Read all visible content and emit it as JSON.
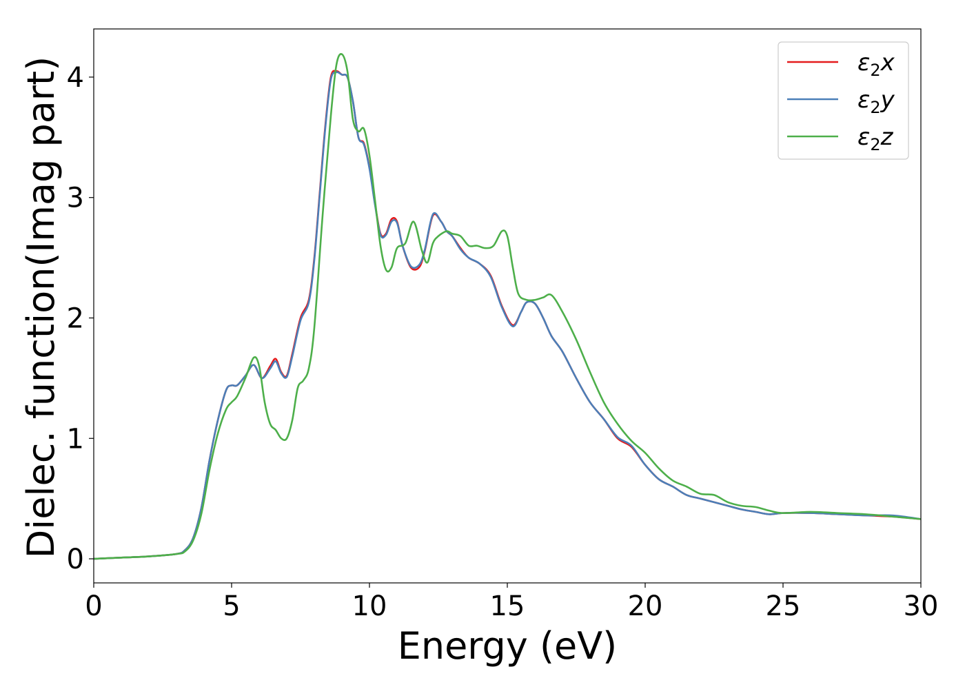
{
  "chart_data": {
    "type": "line",
    "xlabel": "Energy (eV)",
    "ylabel": "Dielec. function(Imag part)",
    "xlim": [
      0,
      30
    ],
    "ylim": [
      -0.2,
      4.4
    ],
    "xticks": [
      0,
      5,
      10,
      15,
      20,
      25,
      30
    ],
    "yticks": [
      0,
      1,
      2,
      3,
      4
    ],
    "grid": false,
    "legend": {
      "placement": "top-right"
    },
    "series": [
      {
        "name": "ε₂x",
        "legend_main": "ε",
        "legend_sub": "2",
        "legend_tail": "x",
        "color": "#e41a1c",
        "x": [
          0,
          1,
          2,
          3,
          3.3,
          3.6,
          3.9,
          4.2,
          4.5,
          4.8,
          5,
          5.2,
          5.5,
          5.8,
          6.1,
          6.4,
          6.6,
          6.8,
          7.0,
          7.2,
          7.5,
          7.8,
          8.0,
          8.2,
          8.4,
          8.6,
          8.8,
          9.0,
          9.2,
          9.4,
          9.6,
          9.8,
          10.0,
          10.2,
          10.4,
          10.6,
          10.8,
          11.0,
          11.2,
          11.5,
          11.8,
          12.0,
          12.3,
          12.6,
          12.8,
          13.0,
          13.3,
          13.6,
          14.0,
          14.4,
          14.8,
          15.2,
          15.5,
          15.7,
          16.0,
          16.3,
          16.6,
          17.0,
          17.5,
          18.0,
          18.5,
          19.0,
          19.5,
          20.0,
          20.5,
          21.0,
          21.5,
          22.0,
          22.5,
          23.0,
          23.5,
          24.0,
          24.5,
          25.0,
          26.0,
          27.0,
          28.0,
          29.0,
          30.0
        ],
        "values": [
          0.0,
          0.01,
          0.02,
          0.04,
          0.07,
          0.17,
          0.42,
          0.82,
          1.15,
          1.4,
          1.44,
          1.44,
          1.52,
          1.61,
          1.5,
          1.6,
          1.66,
          1.55,
          1.52,
          1.7,
          2.0,
          2.15,
          2.5,
          3.05,
          3.6,
          4.0,
          4.05,
          4.02,
          4.0,
          3.8,
          3.5,
          3.45,
          3.25,
          2.95,
          2.7,
          2.7,
          2.82,
          2.8,
          2.6,
          2.42,
          2.42,
          2.55,
          2.85,
          2.8,
          2.72,
          2.68,
          2.58,
          2.5,
          2.45,
          2.35,
          2.1,
          1.94,
          2.05,
          2.13,
          2.12,
          2.0,
          1.85,
          1.72,
          1.5,
          1.3,
          1.16,
          1.0,
          0.93,
          0.78,
          0.66,
          0.6,
          0.53,
          0.5,
          0.47,
          0.44,
          0.41,
          0.39,
          0.37,
          0.38,
          0.38,
          0.37,
          0.36,
          0.35,
          0.33
        ]
      },
      {
        "name": "ε₂y",
        "legend_main": "ε",
        "legend_sub": "2",
        "legend_tail": "y",
        "color": "#4b7fb8",
        "x": [
          0,
          1,
          2,
          3,
          3.3,
          3.6,
          3.9,
          4.2,
          4.5,
          4.8,
          5,
          5.2,
          5.5,
          5.8,
          6.1,
          6.4,
          6.6,
          6.8,
          7.0,
          7.2,
          7.5,
          7.8,
          8.0,
          8.2,
          8.4,
          8.6,
          8.8,
          9.0,
          9.2,
          9.4,
          9.6,
          9.8,
          10.0,
          10.2,
          10.4,
          10.6,
          10.8,
          11.0,
          11.2,
          11.5,
          11.8,
          12.0,
          12.3,
          12.6,
          12.8,
          13.0,
          13.3,
          13.6,
          14.0,
          14.4,
          14.8,
          15.2,
          15.5,
          15.7,
          16.0,
          16.3,
          16.6,
          17.0,
          17.5,
          18.0,
          18.5,
          19.0,
          19.5,
          20.0,
          20.5,
          21.0,
          21.5,
          22.0,
          22.5,
          23.0,
          23.5,
          24.0,
          24.5,
          25.0,
          26.0,
          27.0,
          28.0,
          29.0,
          30.0
        ],
        "values": [
          0.0,
          0.01,
          0.02,
          0.04,
          0.07,
          0.17,
          0.42,
          0.82,
          1.15,
          1.4,
          1.44,
          1.44,
          1.52,
          1.61,
          1.5,
          1.58,
          1.64,
          1.54,
          1.51,
          1.68,
          1.98,
          2.13,
          2.48,
          3.03,
          3.58,
          3.98,
          4.04,
          4.02,
          4.0,
          3.8,
          3.5,
          3.44,
          3.24,
          2.94,
          2.69,
          2.69,
          2.8,
          2.79,
          2.6,
          2.43,
          2.44,
          2.56,
          2.86,
          2.8,
          2.72,
          2.68,
          2.57,
          2.5,
          2.45,
          2.34,
          2.09,
          1.93,
          2.05,
          2.13,
          2.12,
          2.0,
          1.85,
          1.72,
          1.5,
          1.3,
          1.16,
          1.01,
          0.94,
          0.78,
          0.66,
          0.6,
          0.53,
          0.5,
          0.47,
          0.44,
          0.41,
          0.39,
          0.37,
          0.38,
          0.38,
          0.37,
          0.36,
          0.36,
          0.33
        ]
      },
      {
        "name": "ε₂z",
        "legend_main": "ε",
        "legend_sub": "2",
        "legend_tail": "z",
        "color": "#4daf4a",
        "x": [
          0,
          1,
          2,
          3,
          3.3,
          3.6,
          3.9,
          4.2,
          4.5,
          4.8,
          5.0,
          5.2,
          5.5,
          5.8,
          6.0,
          6.2,
          6.4,
          6.6,
          6.8,
          7.0,
          7.2,
          7.4,
          7.6,
          7.8,
          8.0,
          8.3,
          8.6,
          8.8,
          9.0,
          9.2,
          9.4,
          9.6,
          9.8,
          10.0,
          10.2,
          10.4,
          10.6,
          10.8,
          11.0,
          11.3,
          11.6,
          11.9,
          12.1,
          12.3,
          12.5,
          12.8,
          13.0,
          13.3,
          13.6,
          13.9,
          14.2,
          14.5,
          14.8,
          15.0,
          15.2,
          15.4,
          15.7,
          16.0,
          16.3,
          16.6,
          17.0,
          17.5,
          18.0,
          18.5,
          19.0,
          19.5,
          20.0,
          20.5,
          21.0,
          21.5,
          22.0,
          22.5,
          23.0,
          23.5,
          24.0,
          24.5,
          25.0,
          26.0,
          27.0,
          28.0,
          29.0,
          30.0
        ],
        "values": [
          0.0,
          0.01,
          0.02,
          0.04,
          0.06,
          0.15,
          0.37,
          0.74,
          1.04,
          1.24,
          1.3,
          1.35,
          1.5,
          1.67,
          1.6,
          1.3,
          1.12,
          1.07,
          1.0,
          1.0,
          1.15,
          1.42,
          1.48,
          1.58,
          1.92,
          2.85,
          3.68,
          4.1,
          4.19,
          4.05,
          3.65,
          3.55,
          3.57,
          3.35,
          2.98,
          2.6,
          2.4,
          2.42,
          2.58,
          2.62,
          2.8,
          2.56,
          2.46,
          2.62,
          2.68,
          2.72,
          2.7,
          2.68,
          2.6,
          2.6,
          2.58,
          2.6,
          2.72,
          2.68,
          2.42,
          2.2,
          2.15,
          2.15,
          2.17,
          2.19,
          2.05,
          1.82,
          1.55,
          1.3,
          1.12,
          0.98,
          0.88,
          0.75,
          0.65,
          0.6,
          0.54,
          0.53,
          0.47,
          0.44,
          0.43,
          0.4,
          0.38,
          0.39,
          0.38,
          0.37,
          0.35,
          0.33
        ]
      }
    ]
  }
}
